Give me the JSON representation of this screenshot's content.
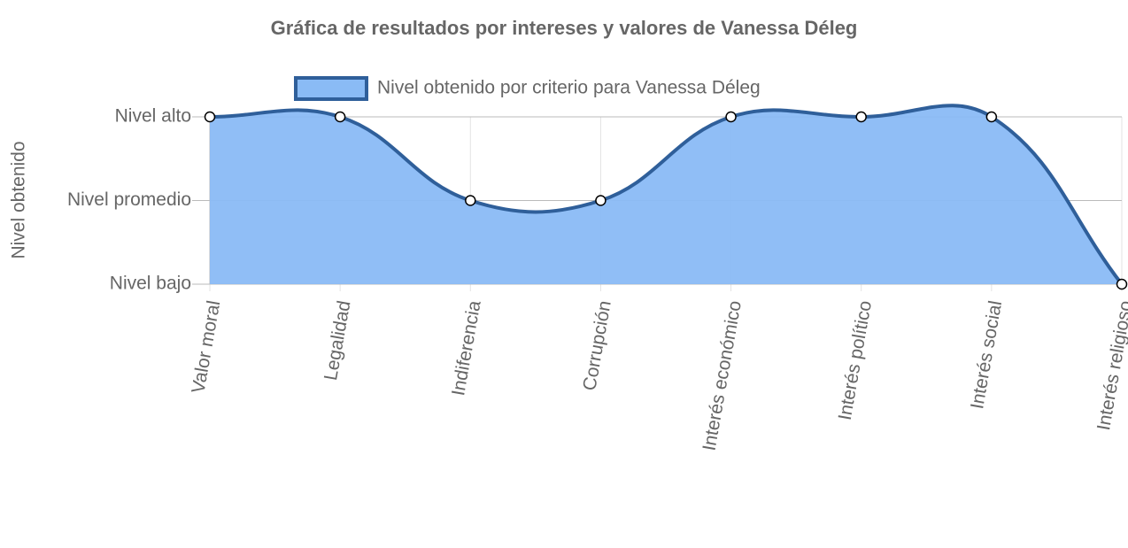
{
  "chart_data": {
    "type": "line",
    "title": "Gráfica de resultados por intereses y valores de Vanessa Déleg",
    "y_label": "Nivel obtenido",
    "categories": [
      "Valor moral",
      "Legalidad",
      "Indiferencia",
      "Corrupción",
      "Interés económico",
      "Interés político",
      "Interés social",
      "Interés religioso"
    ],
    "series": [
      {
        "name": "Nivel obtenido por criterio para Vanessa Déleg",
        "color": "#2f5f9a",
        "fill": "#8abbf5",
        "values": [
          3,
          3,
          2,
          2,
          3,
          3,
          3,
          1
        ]
      }
    ],
    "ylim": [
      1,
      3
    ],
    "yticks": [
      {
        "value": 1,
        "label": "Nivel bajo"
      },
      {
        "value": 2,
        "label": "Nivel promedio"
      },
      {
        "value": 3,
        "label": "Nivel alto"
      }
    ],
    "grid": true
  }
}
